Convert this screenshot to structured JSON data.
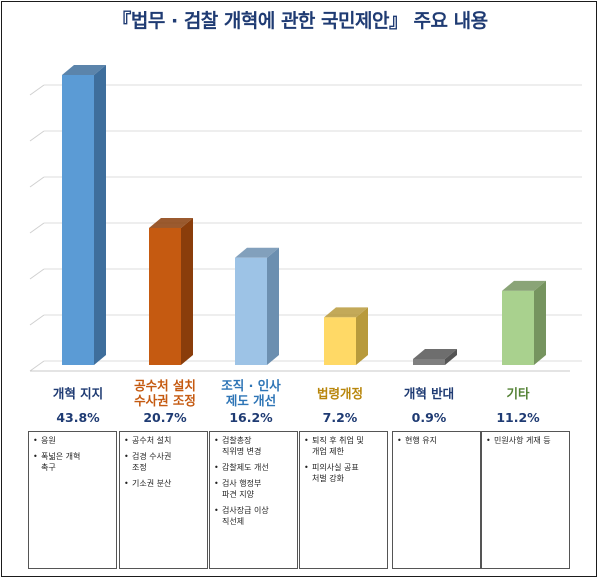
{
  "title": "『법무 · 검찰 개혁에 관한 국민제안』 주요 내용",
  "chart_data": {
    "type": "bar",
    "categories": [
      "개혁 지지",
      "공수처 설치\n수사권 조정",
      "조직 · 인사\n제도 개선",
      "법령개정",
      "개혁 반대",
      "기타"
    ],
    "values": [
      43.8,
      20.7,
      16.2,
      7.2,
      0.9,
      11.2
    ],
    "value_labels": [
      "43.8%",
      "20.7%",
      "16.2%",
      "7.2%",
      "0.9%",
      "11.2%"
    ],
    "ylim": [
      0,
      50
    ],
    "grid": true,
    "bar_colors": [
      "#5b9bd5",
      "#c55a11",
      "#9dc3e6",
      "#ffd966",
      "#7f7f7f",
      "#a9d18e"
    ],
    "bar_side_colors": [
      "#3e6e9c",
      "#8a3d0b",
      "#6c8fb0",
      "#b89a3c",
      "#555555",
      "#76945f"
    ],
    "label_colors": [
      "#1f3b73",
      "#c55a11",
      "#2e75b6",
      "#b8860b",
      "#1f3b73",
      "#548235"
    ]
  },
  "detail_boxes": [
    {
      "items": [
        "응원",
        "폭넓은 개혁\n촉구"
      ]
    },
    {
      "items": [
        "공수처 설치",
        "검경 수사권\n조정",
        "기소권 분산"
      ]
    },
    {
      "items": [
        "검찰총장\n직위명 변경",
        "감찰제도 개선",
        "검사 행정부\n파견 지양",
        "검사장급 이상\n직선제"
      ]
    },
    {
      "items": [
        "퇴직 후 취업 및\n개업 제한",
        "피의사실 공표\n처벌 강화"
      ]
    },
    {
      "items": [
        "현행 유지"
      ]
    },
    {
      "items": [
        "민원사항 게재 등"
      ]
    }
  ]
}
